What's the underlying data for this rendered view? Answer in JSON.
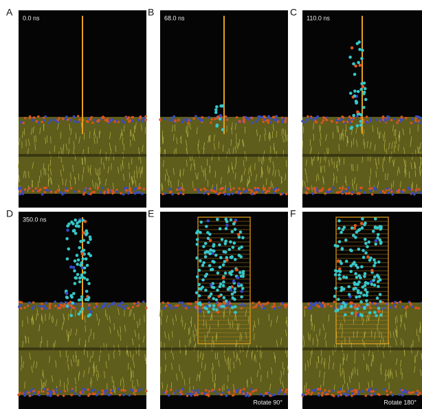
{
  "panels": [
    {
      "letter": "A",
      "label": "0.0 ns"
    },
    {
      "letter": "B",
      "label": "68.0 ns"
    },
    {
      "letter": "C",
      "label": "110.0 ns"
    },
    {
      "letter": "D",
      "label": "350.0 ns"
    },
    {
      "letter": "E",
      "caption": "Rotate 90°"
    },
    {
      "letter": "F",
      "caption": "Rotate 180°"
    }
  ]
}
